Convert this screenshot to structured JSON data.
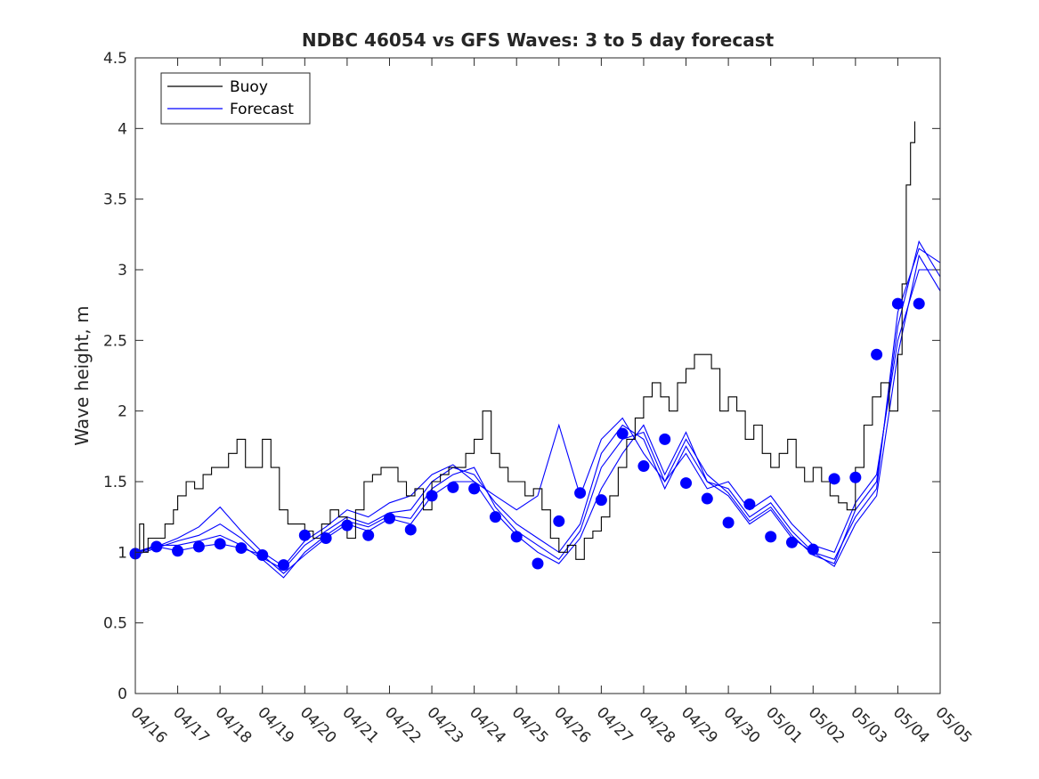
{
  "chart_data": {
    "type": "line",
    "title": "NDBC 46054 vs GFS Waves: 3 to 5 day forecast",
    "xlabel": "",
    "ylabel": "Wave height, m",
    "ylim": [
      0,
      4.5
    ],
    "xlim": [
      0,
      19
    ],
    "yticks": [
      0,
      0.5,
      1,
      1.5,
      2,
      2.5,
      3,
      3.5,
      4,
      4.5
    ],
    "ytick_labels": [
      "0",
      "0.5",
      "1",
      "1.5",
      "2",
      "2.5",
      "3",
      "3.5",
      "4",
      "4.5"
    ],
    "xtick_labels": [
      "04/16",
      "04/17",
      "04/18",
      "04/19",
      "04/20",
      "04/21",
      "04/22",
      "04/23",
      "04/24",
      "04/25",
      "04/26",
      "04/27",
      "04/28",
      "04/29",
      "04/30",
      "05/01",
      "05/02",
      "05/03",
      "05/04",
      "05/05"
    ],
    "grid": false,
    "legend": {
      "position": "top-left",
      "entries": [
        "Buoy",
        "Forecast"
      ]
    },
    "colors": {
      "buoy": "#000000",
      "forecast": "#0000ff",
      "axis": "#262626"
    },
    "buoy": {
      "name": "Buoy",
      "x": [
        0,
        0.1,
        0.2,
        0.3,
        0.5,
        0.7,
        0.9,
        1.0,
        1.2,
        1.4,
        1.6,
        1.8,
        2.0,
        2.2,
        2.4,
        2.6,
        2.8,
        3.0,
        3.2,
        3.4,
        3.6,
        3.8,
        4.0,
        4.2,
        4.4,
        4.6,
        4.8,
        5.0,
        5.2,
        5.4,
        5.6,
        5.8,
        6.0,
        6.2,
        6.4,
        6.6,
        6.8,
        7.0,
        7.2,
        7.4,
        7.6,
        7.8,
        8.0,
        8.2,
        8.4,
        8.6,
        8.8,
        9.0,
        9.2,
        9.4,
        9.6,
        9.8,
        10.0,
        10.2,
        10.4,
        10.6,
        10.8,
        11.0,
        11.2,
        11.4,
        11.6,
        11.8,
        12.0,
        12.2,
        12.4,
        12.6,
        12.8,
        13.0,
        13.2,
        13.4,
        13.6,
        13.8,
        14.0,
        14.2,
        14.4,
        14.6,
        14.8,
        15.0,
        15.2,
        15.4,
        15.6,
        15.8,
        16.0,
        16.2,
        16.4,
        16.6,
        16.8,
        17.0,
        17.2,
        17.4,
        17.6,
        17.8,
        18.0,
        18.1,
        18.2,
        18.3,
        18.4
      ],
      "y": [
        1.0,
        1.2,
        1.0,
        1.1,
        1.1,
        1.2,
        1.3,
        1.4,
        1.5,
        1.45,
        1.55,
        1.6,
        1.6,
        1.7,
        1.8,
        1.6,
        1.6,
        1.8,
        1.6,
        1.3,
        1.2,
        1.2,
        1.15,
        1.1,
        1.2,
        1.3,
        1.25,
        1.1,
        1.3,
        1.5,
        1.55,
        1.6,
        1.6,
        1.5,
        1.4,
        1.45,
        1.3,
        1.5,
        1.55,
        1.6,
        1.6,
        1.7,
        1.8,
        2.0,
        1.7,
        1.6,
        1.5,
        1.5,
        1.4,
        1.45,
        1.3,
        1.1,
        1.0,
        1.05,
        0.95,
        1.1,
        1.15,
        1.25,
        1.4,
        1.6,
        1.8,
        1.95,
        2.1,
        2.2,
        2.1,
        2.0,
        2.2,
        2.3,
        2.4,
        2.4,
        2.3,
        2.0,
        2.1,
        2.0,
        1.8,
        1.9,
        1.7,
        1.6,
        1.7,
        1.8,
        1.6,
        1.5,
        1.6,
        1.5,
        1.4,
        1.35,
        1.3,
        1.6,
        1.9,
        2.1,
        2.2,
        2.0,
        2.4,
        2.9,
        3.6,
        3.9,
        4.05
      ]
    },
    "forecast_runs": [
      {
        "name": "Forecast",
        "x": [
          0,
          0.5,
          1,
          1.5,
          2,
          2.5,
          3,
          3.5,
          4,
          4.5,
          5,
          5.5,
          6,
          6.5,
          7,
          7.5,
          8,
          8.5,
          9,
          9.5,
          10,
          10.5,
          11,
          11.5,
          12,
          12.5,
          13,
          13.5,
          14,
          14.5,
          15,
          15.5,
          16,
          16.5,
          17,
          17.5,
          18,
          18.5,
          19
        ],
        "y": [
          0.99,
          1.04,
          1.01,
          1.04,
          1.06,
          1.03,
          0.98,
          0.85,
          0.98,
          1.1,
          1.2,
          1.15,
          1.24,
          1.2,
          1.4,
          1.5,
          1.5,
          1.28,
          1.12,
          1.0,
          0.92,
          1.1,
          1.45,
          1.7,
          1.9,
          1.55,
          1.85,
          1.5,
          1.4,
          1.2,
          1.3,
          1.1,
          1.0,
          0.9,
          1.2,
          1.4,
          2.4,
          3.1,
          2.85
        ]
      },
      {
        "name": "Forecast",
        "x": [
          0,
          0.5,
          1,
          1.5,
          2,
          2.5,
          3,
          3.5,
          4,
          4.5,
          5,
          5.5,
          6,
          6.5,
          7,
          7.5,
          8,
          8.5,
          9,
          9.5,
          10,
          10.5,
          11,
          11.5,
          12,
          12.5,
          13,
          13.5,
          14,
          14.5,
          15,
          15.5,
          16,
          16.5,
          17,
          17.5,
          18,
          18.5,
          19
        ],
        "y": [
          1.0,
          1.05,
          1.05,
          1.08,
          1.12,
          1.05,
          0.95,
          0.82,
          1.0,
          1.12,
          1.22,
          1.18,
          1.26,
          1.24,
          1.45,
          1.55,
          1.6,
          1.32,
          1.15,
          1.05,
          0.95,
          1.15,
          1.6,
          1.8,
          1.85,
          1.5,
          1.8,
          1.55,
          1.42,
          1.22,
          1.32,
          1.12,
          0.98,
          0.92,
          1.3,
          1.5,
          2.6,
          3.2,
          2.95
        ]
      },
      {
        "name": "Forecast",
        "x": [
          0,
          0.5,
          1,
          1.5,
          2,
          2.5,
          3,
          3.5,
          4,
          4.5,
          5,
          5.5,
          6,
          6.5,
          7,
          7.5,
          8,
          8.5,
          9,
          9.5,
          10,
          10.5,
          11,
          11.5,
          12,
          12.5,
          13,
          13.5,
          14,
          14.5,
          15,
          15.5,
          16,
          16.5,
          17,
          17.5,
          18,
          18.5,
          19
        ],
        "y": [
          0.98,
          1.03,
          1.08,
          1.12,
          1.2,
          1.1,
          0.96,
          0.88,
          1.05,
          1.15,
          1.25,
          1.2,
          1.28,
          1.3,
          1.5,
          1.6,
          1.55,
          1.35,
          1.2,
          1.1,
          1.0,
          1.2,
          1.7,
          1.9,
          1.8,
          1.45,
          1.75,
          1.5,
          1.45,
          1.25,
          1.35,
          1.15,
          1.0,
          0.95,
          1.25,
          1.45,
          2.7,
          3.15,
          3.05
        ]
      },
      {
        "name": "Forecast",
        "x": [
          0,
          0.5,
          1,
          1.5,
          2,
          2.5,
          3,
          3.5,
          4,
          4.5,
          5,
          5.5,
          6,
          6.5,
          7,
          7.5,
          8,
          8.5,
          9,
          9.5,
          10,
          10.5,
          11,
          11.5,
          12,
          12.5,
          13,
          13.5,
          14,
          14.5,
          15,
          15.5,
          16,
          16.5,
          17,
          17.5,
          18,
          18.5,
          19
        ],
        "y": [
          1.0,
          1.04,
          1.1,
          1.18,
          1.32,
          1.15,
          1.0,
          0.9,
          1.08,
          1.18,
          1.3,
          1.25,
          1.35,
          1.4,
          1.55,
          1.62,
          1.5,
          1.4,
          1.3,
          1.4,
          1.9,
          1.4,
          1.8,
          1.95,
          1.7,
          1.5,
          1.7,
          1.45,
          1.5,
          1.3,
          1.4,
          1.2,
          1.05,
          1.0,
          1.35,
          1.55,
          2.5,
          3.0,
          3.0
        ]
      }
    ],
    "forecast_points": {
      "x": [
        0,
        0.5,
        1,
        1.5,
        2,
        2.5,
        3,
        3.5,
        4,
        4.5,
        5,
        5.5,
        6,
        6.5,
        7,
        7.5,
        8,
        8.5,
        9,
        9.5,
        10,
        10.5,
        11,
        11.5,
        12,
        12.5,
        13,
        13.5,
        14,
        14.5,
        15,
        15.5,
        16,
        16.5,
        17,
        17.5,
        18,
        18.5
      ],
      "y": [
        0.99,
        1.04,
        1.01,
        1.04,
        1.06,
        1.03,
        0.98,
        0.91,
        1.12,
        1.1,
        1.19,
        1.12,
        1.24,
        1.16,
        1.4,
        1.46,
        1.45,
        1.25,
        1.11,
        0.92,
        1.22,
        1.42,
        1.37,
        1.84,
        1.61,
        1.8,
        1.49,
        1.38,
        1.21,
        1.34,
        1.11,
        1.07,
        1.02,
        1.52,
        1.53,
        2.4,
        2.76,
        2.76
      ]
    }
  }
}
